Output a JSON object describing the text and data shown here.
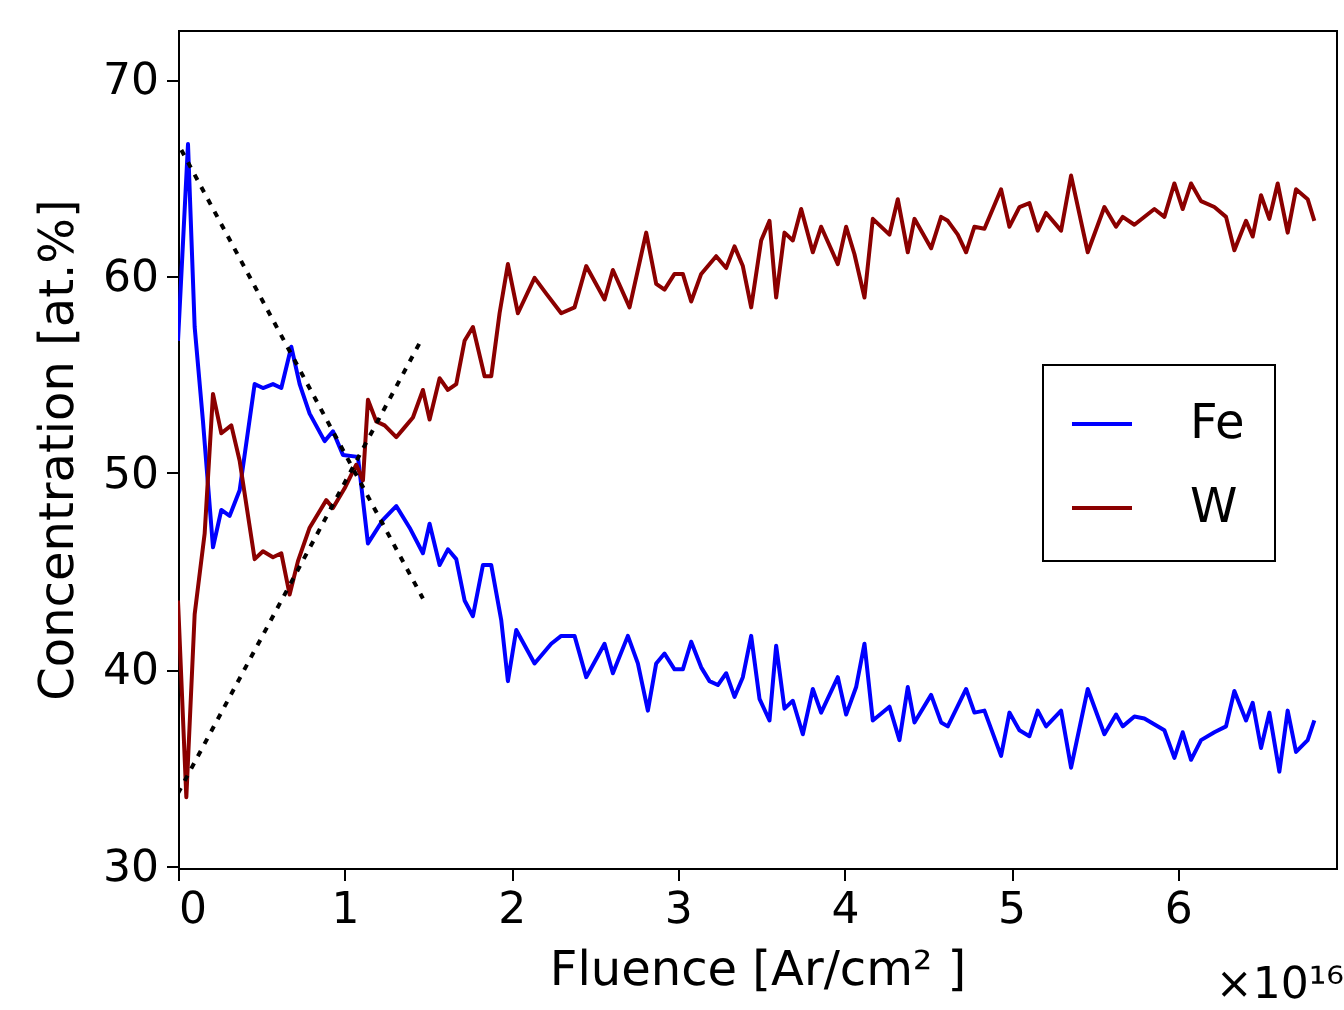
{
  "chart_data": {
    "type": "line",
    "xlabel": "Fluence [Ar/cm² ]",
    "ylabel": "Concentration [at.%]",
    "annotations": [
      "×10¹⁶"
    ],
    "xlim": [
      0,
      6.95
    ],
    "xticks": [
      0,
      1,
      2,
      3,
      4,
      5,
      6
    ],
    "ylim": [
      29.9,
      72.5
    ],
    "yticks": [
      30,
      40,
      50,
      60,
      70
    ],
    "grid": false,
    "legend": "right",
    "series": [
      {
        "name": "Fe",
        "color": "#0000ff",
        "x": [
          0,
          0.06,
          0.1,
          0.15,
          0.21,
          0.26,
          0.31,
          0.37,
          0.46,
          0.51,
          0.57,
          0.62,
          0.68,
          0.73,
          0.79,
          0.88,
          0.93,
          0.99,
          1.08,
          1.14,
          1.23,
          1.31,
          1.39,
          1.47,
          1.51,
          1.57,
          1.62,
          1.67,
          1.72,
          1.77,
          1.83,
          1.88,
          1.94,
          1.98,
          2.03,
          2.14,
          2.24,
          2.3,
          2.38,
          2.45,
          2.56,
          2.61,
          2.7,
          2.76,
          2.82,
          2.87,
          2.92,
          2.98,
          3.03,
          3.08,
          3.14,
          3.19,
          3.24,
          3.29,
          3.34,
          3.39,
          3.44,
          3.49,
          3.55,
          3.59,
          3.64,
          3.69,
          3.75,
          3.81,
          3.86,
          3.96,
          4.01,
          4.07,
          4.12,
          4.17,
          4.27,
          4.33,
          4.38,
          4.42,
          4.52,
          4.58,
          4.62,
          4.73,
          4.78,
          4.84,
          4.94,
          4.99,
          5.05,
          5.11,
          5.16,
          5.21,
          5.3,
          5.36,
          5.46,
          5.56,
          5.63,
          5.67,
          5.74,
          5.8,
          5.92,
          5.98,
          6.03,
          6.08,
          6.14,
          6.22,
          6.29,
          6.34,
          6.41,
          6.45,
          6.5,
          6.55,
          6.61,
          6.66,
          6.71,
          6.78,
          6.82
        ],
        "values": [
          56.7,
          66.7,
          57.4,
          52.6,
          46.2,
          48.1,
          47.8,
          49.1,
          54.5,
          54.3,
          54.5,
          54.3,
          56.4,
          54.5,
          53.0,
          51.6,
          52.1,
          50.9,
          50.8,
          46.4,
          47.6,
          48.3,
          47.2,
          45.9,
          47.4,
          45.3,
          46.1,
          45.6,
          43.5,
          42.7,
          45.3,
          45.3,
          42.5,
          39.4,
          42.0,
          40.3,
          41.3,
          41.7,
          41.7,
          39.6,
          41.3,
          39.8,
          41.7,
          40.3,
          37.9,
          40.3,
          40.8,
          40.0,
          40.0,
          41.4,
          40.1,
          39.4,
          39.2,
          39.8,
          38.6,
          39.6,
          41.7,
          38.5,
          37.4,
          41.2,
          38.0,
          38.4,
          36.7,
          39.0,
          37.8,
          39.6,
          37.7,
          39.1,
          41.3,
          37.4,
          38.1,
          36.4,
          39.1,
          37.3,
          38.7,
          37.3,
          37.1,
          39.0,
          37.8,
          37.9,
          35.6,
          37.8,
          36.9,
          36.6,
          37.9,
          37.1,
          37.9,
          35.0,
          39.0,
          36.7,
          37.7,
          37.1,
          37.6,
          37.5,
          36.9,
          35.5,
          36.8,
          35.4,
          36.4,
          36.8,
          37.1,
          38.9,
          37.4,
          38.3,
          36.0,
          37.8,
          34.8,
          37.9,
          35.8,
          36.4,
          37.4
        ]
      },
      {
        "name": "W",
        "color": "#8b0000",
        "x": [
          0,
          0.05,
          0.1,
          0.16,
          0.21,
          0.26,
          0.32,
          0.37,
          0.46,
          0.51,
          0.57,
          0.62,
          0.67,
          0.72,
          0.79,
          0.89,
          0.93,
          1.0,
          1.07,
          1.11,
          1.14,
          1.19,
          1.24,
          1.31,
          1.36,
          1.41,
          1.47,
          1.51,
          1.57,
          1.62,
          1.67,
          1.72,
          1.77,
          1.84,
          1.88,
          1.93,
          1.98,
          2.04,
          2.14,
          2.21,
          2.3,
          2.38,
          2.45,
          2.56,
          2.61,
          2.71,
          2.81,
          2.87,
          2.92,
          2.98,
          3.03,
          3.08,
          3.14,
          3.23,
          3.29,
          3.34,
          3.39,
          3.44,
          3.5,
          3.55,
          3.59,
          3.64,
          3.69,
          3.74,
          3.81,
          3.86,
          3.96,
          4.01,
          4.06,
          4.12,
          4.17,
          4.27,
          4.32,
          4.38,
          4.42,
          4.52,
          4.58,
          4.62,
          4.68,
          4.73,
          4.78,
          4.84,
          4.94,
          4.99,
          5.05,
          5.11,
          5.16,
          5.21,
          5.3,
          5.36,
          5.46,
          5.56,
          5.63,
          5.67,
          5.74,
          5.86,
          5.92,
          5.98,
          6.03,
          6.08,
          6.14,
          6.22,
          6.29,
          6.34,
          6.41,
          6.45,
          6.5,
          6.55,
          6.6,
          6.66,
          6.71,
          6.78,
          6.82
        ],
        "values": [
          43.5,
          33.5,
          42.8,
          46.9,
          54.0,
          52.0,
          52.4,
          50.6,
          45.6,
          46.0,
          45.7,
          45.9,
          43.8,
          45.5,
          47.2,
          48.6,
          48.2,
          49.2,
          50.4,
          49.6,
          53.7,
          52.6,
          52.4,
          51.8,
          52.3,
          52.8,
          54.2,
          52.7,
          54.8,
          54.2,
          54.5,
          56.7,
          57.4,
          54.9,
          54.9,
          58.1,
          60.6,
          58.1,
          59.9,
          59.1,
          58.1,
          58.4,
          60.5,
          58.8,
          60.3,
          58.4,
          62.2,
          59.6,
          59.3,
          60.1,
          60.1,
          58.7,
          60.1,
          61.0,
          60.4,
          61.5,
          60.5,
          58.4,
          61.8,
          62.8,
          58.9,
          62.2,
          61.8,
          63.4,
          61.2,
          62.5,
          60.6,
          62.5,
          61.1,
          58.9,
          62.9,
          62.1,
          63.9,
          61.2,
          62.9,
          61.4,
          63.0,
          62.8,
          62.1,
          61.2,
          62.5,
          62.4,
          64.4,
          62.5,
          63.5,
          63.7,
          62.3,
          63.2,
          62.3,
          65.1,
          61.2,
          63.5,
          62.5,
          63.0,
          62.6,
          63.4,
          63.0,
          64.7,
          63.4,
          64.7,
          63.8,
          63.5,
          63.0,
          61.3,
          62.8,
          62.0,
          64.1,
          62.9,
          64.7,
          62.2,
          64.4,
          63.9,
          62.8
        ]
      },
      {
        "color": "#000000",
        "line_style": "dotted",
        "x": [
          0.02,
          1.47
        ],
        "values": [
          66.4,
          43.6
        ]
      },
      {
        "color": "#000000",
        "line_style": "dotted",
        "x": [
          0,
          1.47
        ],
        "values": [
          33.7,
          56.9
        ]
      }
    ]
  }
}
